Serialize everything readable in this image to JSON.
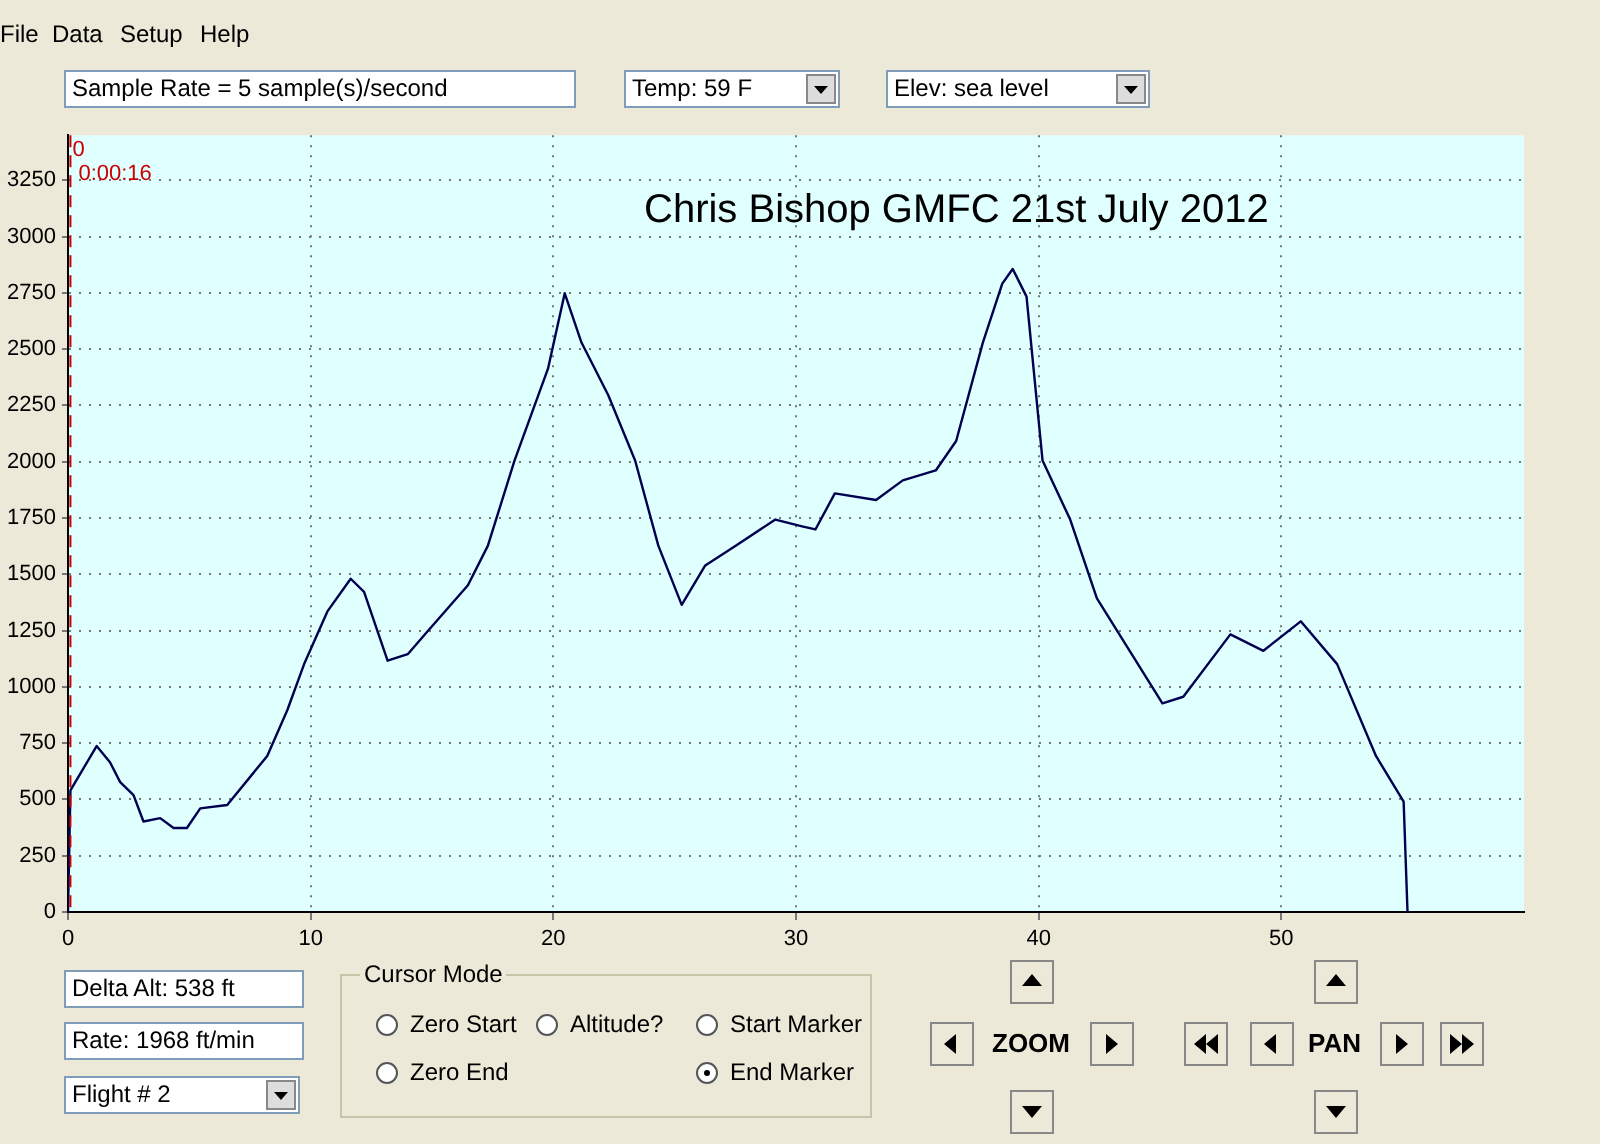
{
  "chart_data": {
    "type": "line",
    "title": "Chris Bishop GMFC 21st July 2012",
    "x": [
      0,
      0.1,
      1.18,
      1.73,
      2.15,
      2.7,
      3.11,
      3.8,
      4.35,
      4.9,
      5.45,
      6.56,
      8.21,
      9.04,
      9.73,
      10.69,
      11.65,
      12.2,
      13.17,
      14.0,
      14.82,
      16.48,
      17.3,
      18.4,
      19.78,
      20.47,
      21.16,
      22.26,
      23.37,
      24.33,
      25.29,
      26.26,
      27.5,
      29.15,
      30.25,
      30.8,
      31.6,
      33.3,
      34.4,
      35.76,
      36.6,
      37.7,
      38.5,
      38.93,
      39.5,
      40.16,
      41.3,
      42.4,
      43.75,
      45.1,
      45.96,
      47.9,
      49.26,
      50.8,
      52.3,
      53.9,
      55.04,
      55.2
    ],
    "series": [
      {
        "color": "#000050",
        "values": [
          0,
          540,
          737,
          665,
          577,
          519,
          402,
          417,
          373,
          373,
          460,
          475,
          693,
          897,
          1101,
          1335,
          1480,
          1422,
          1116,
          1145,
          1247,
          1451,
          1626,
          2005,
          2413,
          2748,
          2529,
          2296,
          2005,
          1626,
          1364,
          1539,
          1626,
          1743,
          1713,
          1699,
          1859,
          1830,
          1917,
          1961,
          2092,
          2529,
          2791,
          2856,
          2733,
          2005,
          1743,
          1393,
          1160,
          927,
          956,
          1233,
          1160,
          1291,
          1101,
          693,
          490,
          0
        ]
      }
    ],
    "xlim": [
      0,
      60
    ],
    "xticks": [
      0,
      10,
      20,
      30,
      40,
      50
    ],
    "ylim": [
      0,
      3450
    ],
    "yticks": [
      0,
      250,
      500,
      750,
      1000,
      1250,
      1500,
      1750,
      2000,
      2250,
      2500,
      2750,
      3000,
      3250
    ],
    "grid": true,
    "marker": "none",
    "line_style": "solid",
    "legend": false,
    "ref_lines": [
      {
        "axis": "x",
        "value": 0.1,
        "label": "0",
        "color": "#cc0000",
        "line_style": "dashed"
      }
    ],
    "annotations": [
      "0:00:16",
      "File",
      "Data",
      "Setup",
      "Help",
      "Sample Rate =  5 sample(s)/second",
      "Temp:  59 F",
      "Elev: sea level",
      "Delta Alt: 538 ft",
      "Rate: 1968 ft/min",
      "Flight # 2",
      "Cursor Mode",
      "Zero Start",
      "Altitude?",
      "Start Marker",
      "Zero End",
      "End Marker",
      "ZOOM",
      "PAN"
    ]
  }
}
